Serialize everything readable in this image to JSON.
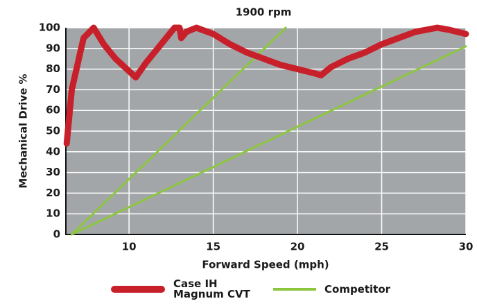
{
  "chart_data": {
    "type": "line",
    "title": "1900 rpm",
    "xlabel": "Forward Speed (mph)",
    "ylabel": "Mechanical Drive %",
    "xlim": [
      6.25,
      30
    ],
    "ylim": [
      0,
      100
    ],
    "xticks": [
      10,
      15,
      20,
      25,
      30
    ],
    "yticks": [
      0,
      10,
      20,
      30,
      40,
      50,
      60,
      70,
      80,
      90,
      100
    ],
    "grid": true,
    "legend": "bottom",
    "series": [
      {
        "name": "Case IH Magnum CVT",
        "color": "#c8202a",
        "x": [
          6.3,
          6.6,
          7.3,
          7.9,
          8.5,
          9.2,
          10,
          10.4,
          11,
          12,
          12.7,
          13,
          13.1,
          13.4,
          14,
          15,
          16,
          17,
          18,
          19,
          20,
          21,
          21.4,
          22,
          23,
          24,
          25,
          26,
          27,
          28.3,
          29,
          30
        ],
        "values": [
          44,
          70,
          95,
          100,
          92,
          85,
          79,
          76,
          83,
          93,
          100,
          100,
          95,
          98,
          100,
          97,
          92,
          88,
          85,
          82,
          80,
          78,
          77,
          81,
          85,
          88,
          92,
          95,
          98,
          100,
          99,
          97
        ]
      },
      {
        "name": "Competitor",
        "color": "#8dc63f",
        "x": [
          6.6,
          19.3,
          19.3,
          6.6,
          30
        ],
        "values": [
          0,
          100,
          null,
          0,
          91
        ]
      }
    ]
  }
}
